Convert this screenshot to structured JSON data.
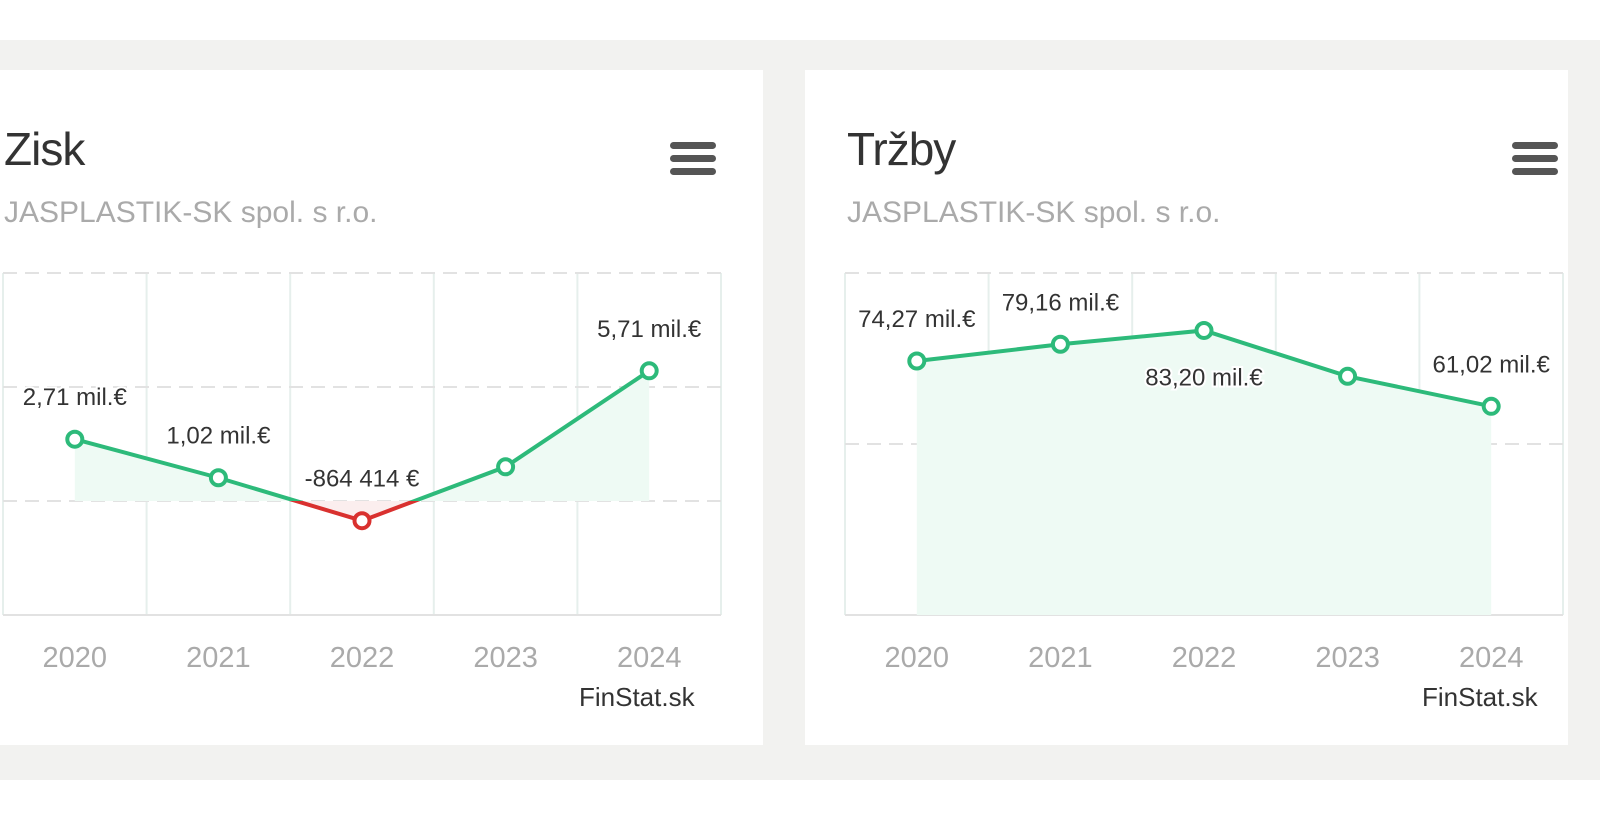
{
  "colors": {
    "line": "#2dba7a",
    "negative": "#d9312f",
    "fill": "#eefaf4",
    "negative_fill": "#fbeeee",
    "grid": "#e2e2e2",
    "vgrid": "#e6efec"
  },
  "chart_data": [
    {
      "type": "area",
      "title": "Zisk",
      "subtitle": "JASPLASTIK-SK spol. s r.o.",
      "categories": [
        "2020",
        "2021",
        "2022",
        "2023",
        "2024"
      ],
      "values": [
        2.71,
        1.02,
        -0.864414,
        1.5,
        5.71
      ],
      "labels": [
        "2,71 mil.€",
        "1,02 mil.€",
        "-864 414 €",
        null,
        "5,71 mil.€"
      ],
      "ylim": [
        -5,
        10
      ],
      "gridlines": [
        0,
        5,
        10
      ],
      "unit": "mil. €",
      "credit": "FinStat.sk",
      "menu_icon": "hamburger-icon"
    },
    {
      "type": "area",
      "title": "Tržby",
      "subtitle": "JASPLASTIK-SK spol. s r.o.",
      "categories": [
        "2020",
        "2021",
        "2022",
        "2023",
        "2024"
      ],
      "values": [
        74.27,
        79.16,
        83.2,
        69.8,
        61.02
      ],
      "labels": [
        "74,27 mil.€",
        "79,16 mil.€",
        "83,20 mil.€",
        null,
        "61,02 mil.€"
      ],
      "ylim": [
        0,
        100
      ],
      "gridlines": [
        0,
        50,
        100
      ],
      "unit": "mil. €",
      "credit": "FinStat.sk",
      "menu_icon": "hamburger-icon"
    }
  ]
}
